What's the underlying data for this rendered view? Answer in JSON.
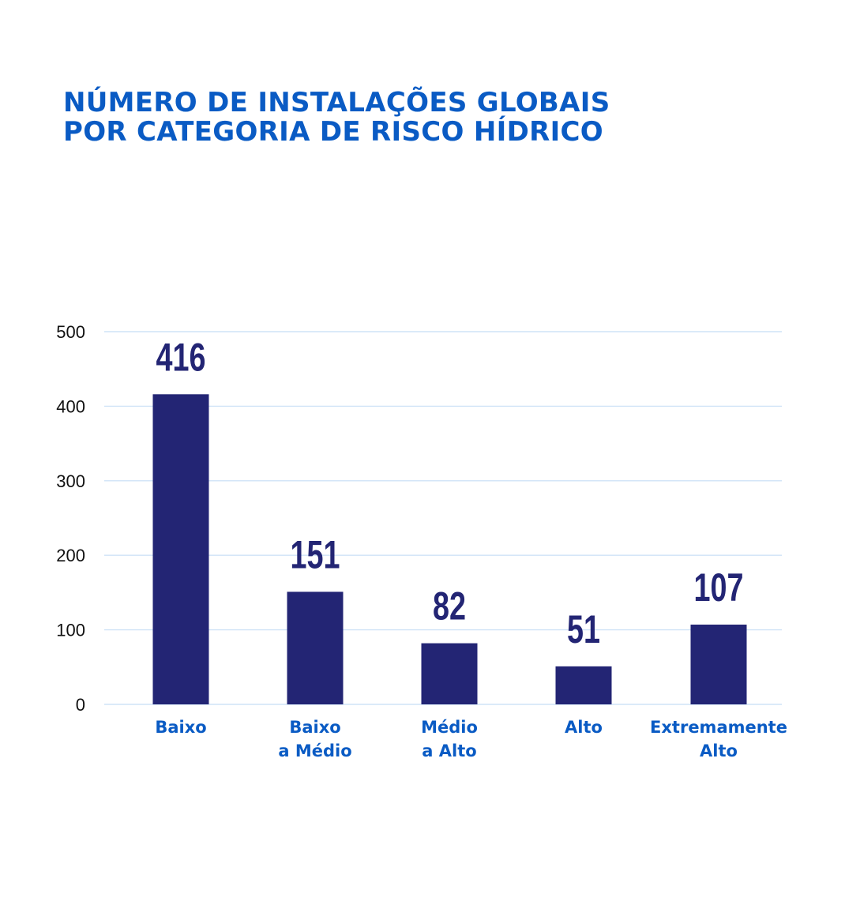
{
  "title": {
    "line1": "NÚMERO DE INSTALAÇÕES GLOBAIS",
    "line2": "POR CATEGORIA DE RISCO HÍDRICO"
  },
  "colors": {
    "title": "#0a5bc4",
    "bar": "#232574",
    "grid": "#cfe3f7",
    "category_label": "#0a5bc4",
    "tick_label": "#111111"
  },
  "chart_data": {
    "type": "bar",
    "title": "NÚMERO DE INSTALAÇÕES GLOBAIS POR CATEGORIA DE RISCO HÍDRICO",
    "categories": [
      [
        "Baixo"
      ],
      [
        "Baixo",
        "a Médio"
      ],
      [
        "Médio",
        "a Alto"
      ],
      [
        "Alto"
      ],
      [
        "Extremamente",
        "Alto"
      ]
    ],
    "values": [
      416,
      151,
      82,
      51,
      107
    ],
    "value_labels": [
      "416",
      "151",
      "82",
      "51",
      "107"
    ],
    "yticks": [
      0,
      100,
      200,
      300,
      400,
      500
    ],
    "ytick_labels": [
      "0",
      "100",
      "200",
      "300",
      "400",
      "500"
    ],
    "ylim": [
      0,
      500
    ],
    "xlabel": "",
    "ylabel": "",
    "grid": true
  }
}
